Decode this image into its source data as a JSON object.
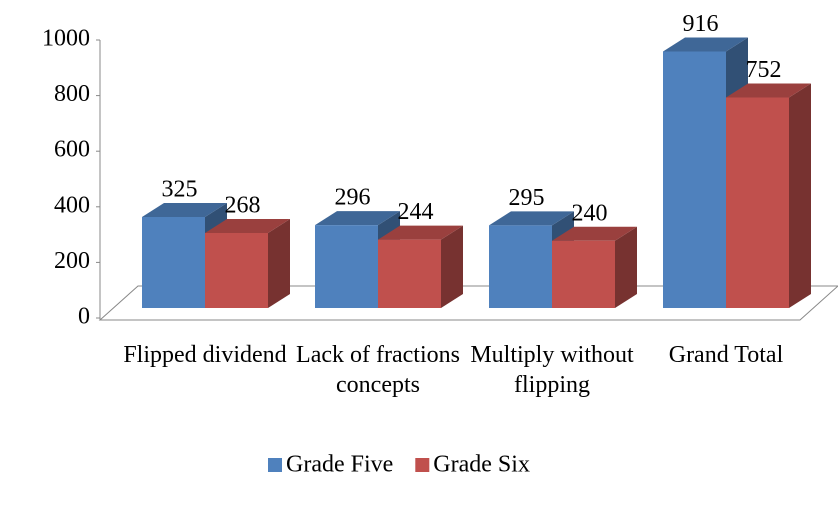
{
  "chart_data": {
    "type": "bar3d",
    "categories": [
      "Flipped dividend",
      "Lack of fractions concepts",
      "Multiply without flipping",
      "Grand Total"
    ],
    "series": [
      {
        "name": "Grade Five",
        "color": "#4f81bd",
        "values": [
          325,
          296,
          295,
          916
        ]
      },
      {
        "name": "Grade Six",
        "color": "#c0504d",
        "values": [
          268,
          244,
          240,
          752
        ]
      }
    ],
    "ylim": [
      0,
      1000
    ],
    "yticks": [
      0,
      200,
      400,
      600,
      800,
      1000
    ],
    "legend": "bottom"
  }
}
